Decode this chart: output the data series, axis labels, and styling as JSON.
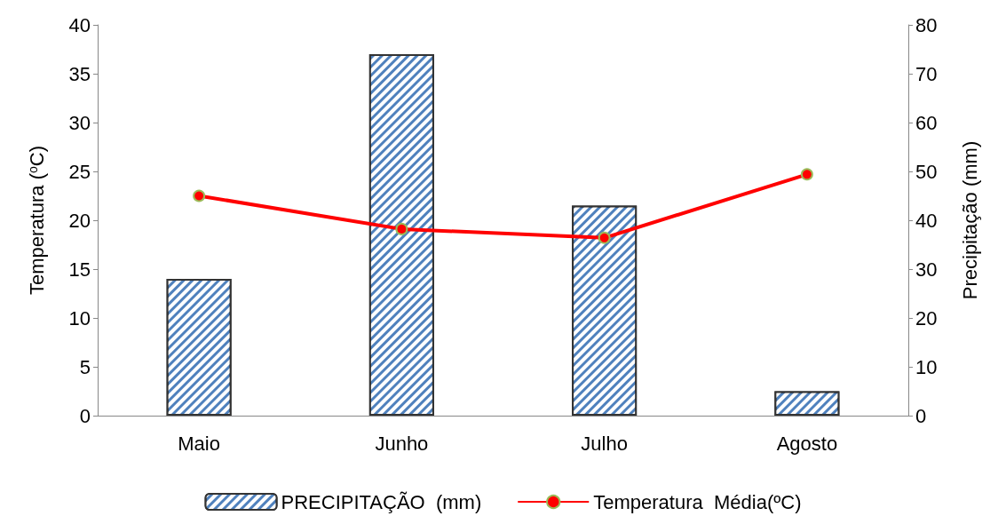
{
  "chart_data": {
    "type": "bar",
    "categories": [
      "Maio",
      "Junho",
      "Julho",
      "Agosto"
    ],
    "ylabel": "Temperatura ($^{o}$C)",
    "y2label": "Precipitação (mm)",
    "ylim": [
      0,
      40
    ],
    "yticks": [
      0,
      5,
      10,
      15,
      20,
      25,
      30,
      35,
      40
    ],
    "y2lim": [
      0,
      80
    ],
    "y2ticks": [
      0,
      10,
      20,
      30,
      40,
      50,
      60,
      70,
      80
    ],
    "series": [
      {
        "name": "PRECIPITAÇÃO  (mm)",
        "axis": "y2",
        "color": "#4f81bd",
        "values": [
          28,
          74,
          43,
          5
        ]
      },
      {
        "name": "Temperatura  Média(ºC)",
        "type": "line",
        "axis": "y",
        "color": "#ff0000",
        "marker": "circle",
        "values": [
          22.5,
          19.1,
          18.2,
          24.7
        ]
      }
    ],
    "grid": false,
    "legend": "bottom"
  }
}
